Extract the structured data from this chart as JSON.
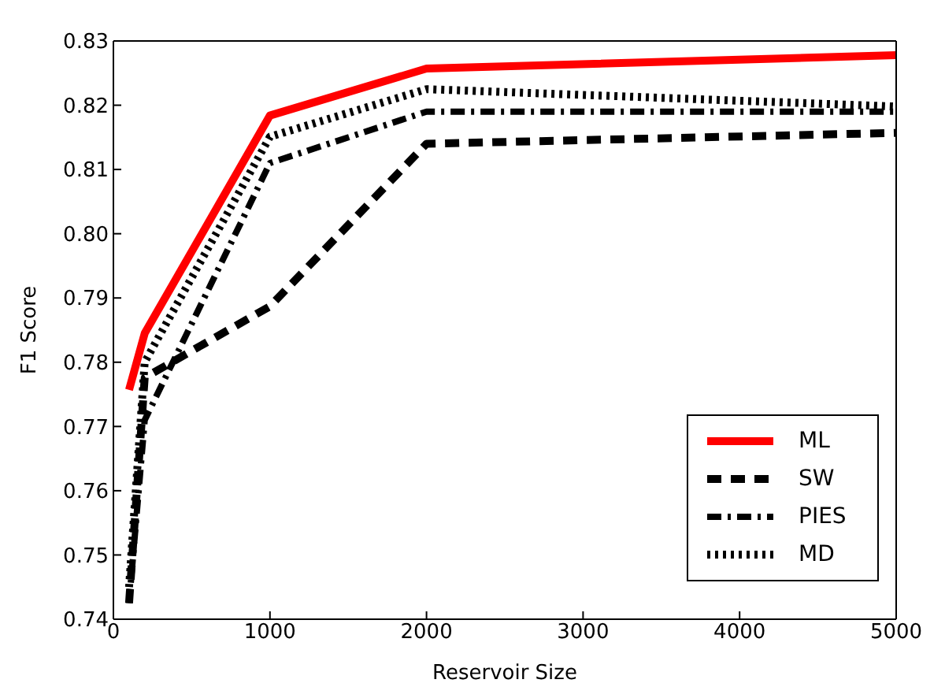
{
  "chart_data": {
    "type": "line",
    "xlabel": "Reservoir Size",
    "ylabel": "F1 Score",
    "x": [
      100,
      200,
      1000,
      2000,
      5000
    ],
    "series": [
      {
        "name": "ML",
        "color": "#ff0000",
        "line_style": "solid",
        "values": [
          0.7757,
          0.7845,
          0.8184,
          0.8257,
          0.8278
        ]
      },
      {
        "name": "SW",
        "color": "#000000",
        "line_style": "dashed",
        "values": [
          0.7425,
          0.7776,
          0.7887,
          0.814,
          0.8157
        ]
      },
      {
        "name": "PIES",
        "color": "#000000",
        "line_style": "dashdot",
        "values": [
          0.7425,
          0.771,
          0.811,
          0.819,
          0.819
        ]
      },
      {
        "name": "MD",
        "color": "#000000",
        "line_style": "dotted",
        "values": [
          0.745,
          0.78,
          0.8151,
          0.8225,
          0.8198
        ]
      }
    ],
    "xlim": [
      0,
      5000
    ],
    "xticks": [
      0,
      1000,
      2000,
      3000,
      4000,
      5000
    ],
    "ylim": [
      0.74,
      0.83
    ],
    "yticks": [
      0.74,
      0.75,
      0.76,
      0.77,
      0.78,
      0.79,
      {
        "value": 0.8,
        "label": "0.80"
      },
      0.81,
      0.82,
      0.83
    ],
    "grid": false,
    "legend": "bottom right",
    "marker": "none"
  }
}
